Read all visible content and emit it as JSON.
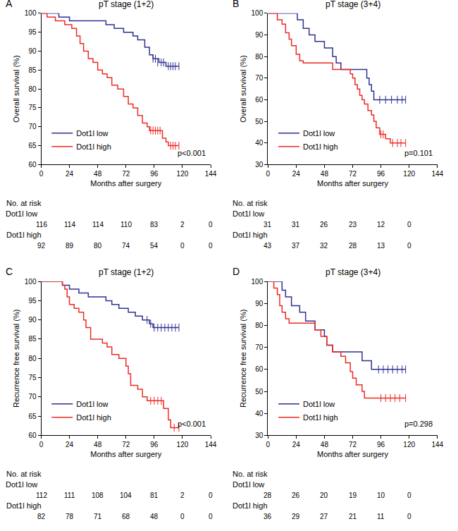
{
  "chart_data": [
    {
      "type": "line",
      "panel": "A",
      "title": "pT stage (1+2)",
      "x_label": "Months after surgery",
      "y_label": "Overall survival (%)",
      "xlim": [
        0,
        144
      ],
      "xticks": [
        0,
        24,
        48,
        72,
        96,
        120,
        144
      ],
      "ylim": [
        60,
        100
      ],
      "yticks": [
        60,
        65,
        70,
        75,
        80,
        85,
        90,
        95,
        100
      ],
      "grid": false,
      "legend": "lower left",
      "line_style": "step",
      "annotations": [
        "p<0.001"
      ],
      "series": [
        {
          "name": "Dot1l low",
          "color": "#2e3192",
          "marker": "tick",
          "x": [
            0,
            15,
            24,
            55,
            62,
            70,
            78,
            82,
            88,
            92,
            95,
            100,
            106,
            117
          ],
          "values": [
            100,
            99,
            98,
            97,
            96,
            95,
            94,
            93,
            91,
            89,
            88,
            87,
            86,
            86
          ],
          "censored_x": [
            95,
            97,
            99,
            102,
            104,
            108,
            110,
            112,
            114,
            117
          ],
          "censored_values": [
            88,
            88,
            87,
            87,
            87,
            86,
            86,
            86,
            86,
            86
          ]
        },
        {
          "name": "Dot1l high",
          "color": "#ee2a24",
          "marker": "tick",
          "x": [
            0,
            5,
            12,
            20,
            26,
            30,
            33,
            36,
            40,
            44,
            48,
            52,
            56,
            60,
            65,
            70,
            74,
            78,
            82,
            86,
            90,
            92,
            103,
            106,
            108,
            117
          ],
          "values": [
            100,
            99,
            98,
            97,
            96,
            94,
            92,
            90,
            88,
            87,
            85,
            84,
            83,
            81,
            80,
            78,
            76,
            75,
            73,
            71,
            70,
            69,
            67,
            66,
            65,
            65
          ],
          "censored_x": [
            93,
            95,
            97,
            99,
            101,
            110,
            112,
            114,
            117
          ],
          "censored_values": [
            69,
            69,
            69,
            69,
            69,
            65,
            65,
            65,
            65
          ]
        }
      ],
      "at_risk": {
        "title": "No. at risk",
        "x": [
          0,
          24,
          48,
          72,
          96,
          120,
          144
        ],
        "rows": [
          {
            "name": "Dot1l low",
            "values": [
              116,
              114,
              114,
              110,
              83,
              2,
              0
            ]
          },
          {
            "name": "Dot1l high",
            "values": [
              92,
              89,
              80,
              74,
              54,
              0,
              0
            ]
          }
        ]
      }
    },
    {
      "type": "line",
      "panel": "B",
      "title": "pT stage (3+4)",
      "x_label": "Months after surgery",
      "y_label": "Overall survival (%)",
      "xlim": [
        0,
        144
      ],
      "xticks": [
        0,
        24,
        48,
        72,
        96,
        120,
        144
      ],
      "ylim": [
        30,
        100
      ],
      "yticks": [
        30,
        40,
        50,
        60,
        70,
        80,
        90,
        100
      ],
      "grid": false,
      "legend": "lower left",
      "line_style": "step",
      "annotations": [
        "p=0.101"
      ],
      "series": [
        {
          "name": "Dot1l low",
          "color": "#2e3192",
          "marker": "tick",
          "x": [
            0,
            25,
            30,
            35,
            40,
            48,
            55,
            58,
            62,
            84,
            86,
            88,
            90,
            117
          ],
          "values": [
            100,
            97,
            93,
            90,
            87,
            84,
            80,
            77,
            74,
            70,
            67,
            64,
            60,
            60
          ],
          "censored_x": [
            95,
            100,
            105,
            110,
            114,
            117
          ],
          "censored_values": [
            60,
            60,
            60,
            60,
            60,
            60
          ]
        },
        {
          "name": "Dot1l high",
          "color": "#ee2a24",
          "marker": "tick",
          "x": [
            0,
            8,
            12,
            15,
            18,
            20,
            24,
            27,
            30,
            55,
            70,
            72,
            74,
            76,
            78,
            80,
            82,
            85,
            88,
            90,
            92,
            95,
            100,
            104,
            117
          ],
          "values": [
            100,
            97,
            95,
            91,
            88,
            85,
            81,
            78,
            77,
            74,
            72,
            70,
            67,
            65,
            62,
            60,
            58,
            55,
            53,
            50,
            47,
            44,
            42,
            40,
            40
          ],
          "censored_x": [
            96,
            98,
            106,
            110,
            113,
            117
          ],
          "censored_values": [
            44,
            44,
            40,
            40,
            40,
            40
          ]
        }
      ],
      "at_risk": {
        "title": "No. at risk",
        "x": [
          0,
          24,
          48,
          72,
          96,
          120
        ],
        "rows": [
          {
            "name": "Dot1l low",
            "values": [
              31,
              31,
              26,
              23,
              12,
              0
            ]
          },
          {
            "name": "Dot1l high",
            "values": [
              43,
              37,
              32,
              28,
              13,
              0
            ]
          }
        ]
      }
    },
    {
      "type": "line",
      "panel": "C",
      "title": "pT stage (1+2)",
      "x_label": "Months after surgery",
      "y_label": "Recurrence free survival (%)",
      "xlim": [
        0,
        144
      ],
      "xticks": [
        0,
        24,
        48,
        72,
        96,
        120,
        144
      ],
      "ylim": [
        60,
        100
      ],
      "yticks": [
        60,
        65,
        70,
        75,
        80,
        85,
        90,
        95,
        100
      ],
      "grid": false,
      "legend": "lower left",
      "line_style": "step",
      "annotations": [
        "p<0.001"
      ],
      "series": [
        {
          "name": "Dot1l low",
          "color": "#2e3192",
          "marker": "tick",
          "x": [
            0,
            18,
            24,
            32,
            40,
            55,
            60,
            66,
            74,
            80,
            86,
            92,
            95,
            117
          ],
          "values": [
            100,
            99,
            98,
            97,
            96,
            95,
            94,
            93,
            92,
            91,
            90,
            89,
            88,
            88
          ],
          "censored_x": [
            90,
            93,
            96,
            99,
            102,
            105,
            108,
            111,
            114,
            117
          ],
          "censored_values": [
            90,
            89,
            88,
            88,
            88,
            88,
            88,
            88,
            88,
            88
          ]
        },
        {
          "name": "Dot1l high",
          "color": "#ee2a24",
          "marker": "tick",
          "x": [
            0,
            18,
            20,
            22,
            24,
            28,
            32,
            36,
            38,
            42,
            52,
            56,
            60,
            66,
            72,
            74,
            76,
            82,
            86,
            90,
            104,
            108,
            110,
            117
          ],
          "values": [
            100,
            99,
            98,
            96,
            94,
            93,
            92,
            90,
            88,
            85,
            84,
            83,
            81,
            80,
            78,
            76,
            73,
            72,
            70,
            69,
            67,
            64,
            62,
            62
          ],
          "censored_x": [
            93,
            96,
            99,
            102,
            113,
            117
          ],
          "censored_values": [
            69,
            69,
            69,
            69,
            62,
            62
          ]
        }
      ],
      "at_risk": {
        "title": "No. at risk",
        "x": [
          0,
          24,
          48,
          72,
          96,
          120,
          144
        ],
        "rows": [
          {
            "name": "Dot1l low",
            "values": [
              112,
              111,
              108,
              104,
              81,
              2,
              0
            ]
          },
          {
            "name": "Dot1l high",
            "values": [
              82,
              78,
              71,
              68,
              48,
              0,
              0
            ]
          }
        ]
      }
    },
    {
      "type": "line",
      "panel": "D",
      "title": "pT stage (3+4)",
      "x_label": "Months after surgery",
      "y_label": "Recurrence free survival (%)",
      "xlim": [
        0,
        144
      ],
      "xticks": [
        0,
        24,
        48,
        72,
        96,
        120,
        144
      ],
      "ylim": [
        30,
        100
      ],
      "yticks": [
        30,
        40,
        50,
        60,
        70,
        80,
        90,
        100
      ],
      "grid": false,
      "legend": "lower left",
      "line_style": "step",
      "annotations": [
        "p=0.298"
      ],
      "series": [
        {
          "name": "Dot1l low",
          "color": "#2e3192",
          "marker": "tick",
          "x": [
            0,
            12,
            15,
            20,
            27,
            32,
            40,
            48,
            50,
            55,
            80,
            88,
            117
          ],
          "values": [
            100,
            96,
            93,
            89,
            86,
            82,
            78,
            75,
            71,
            68,
            64,
            60,
            60
          ],
          "censored_x": [
            94,
            98,
            102,
            106,
            110,
            114,
            117
          ],
          "censored_values": [
            60,
            60,
            60,
            60,
            60,
            60,
            60
          ]
        },
        {
          "name": "Dot1l high",
          "color": "#ee2a24",
          "marker": "tick",
          "x": [
            0,
            5,
            8,
            10,
            12,
            15,
            18,
            40,
            45,
            50,
            55,
            62,
            66,
            70,
            72,
            75,
            80,
            82,
            117
          ],
          "values": [
            100,
            97,
            94,
            89,
            86,
            83,
            81,
            78,
            75,
            71,
            68,
            66,
            63,
            59,
            56,
            53,
            50,
            47,
            47
          ],
          "censored_x": [
            96,
            100,
            104,
            108,
            112,
            117
          ],
          "censored_values": [
            47,
            47,
            47,
            47,
            47,
            47
          ]
        }
      ],
      "at_risk": {
        "title": "No. at risk",
        "x": [
          0,
          24,
          48,
          72,
          96,
          120
        ],
        "rows": [
          {
            "name": "Dot1l low",
            "values": [
              28,
              26,
              20,
              19,
              10,
              0
            ]
          },
          {
            "name": "Dot1l high",
            "values": [
              36,
              29,
              27,
              21,
              11,
              0
            ]
          }
        ]
      }
    }
  ]
}
